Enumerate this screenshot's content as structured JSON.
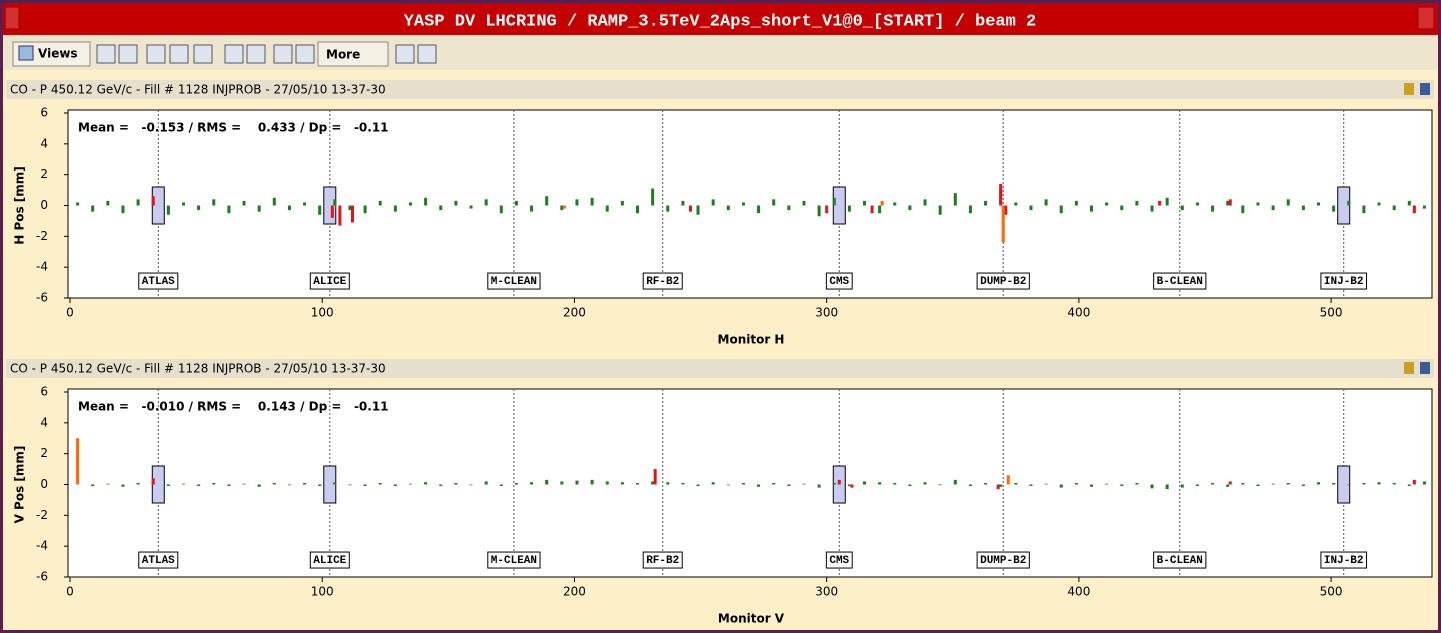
{
  "window": {
    "title": "YASP DV LHCRING / RAMP_3.5TeV_2Aps_short_V1@0_[START] / beam 2"
  },
  "toolbar": {
    "views": "Views",
    "more": "More"
  },
  "chart_data": [
    {
      "type": "bar",
      "panel_title": "CO - P 450.12 GeV/c - Fill # 1128 INJPROB - 27/05/10 13-37-30",
      "stats": "Mean =   -0.153 / RMS =    0.433 / Dp =   -0.11",
      "ylabel": "H Pos [mm]",
      "xlabel": "Monitor H",
      "xlim": [
        0,
        540
      ],
      "ylim": [
        -6,
        6
      ],
      "xticks": [
        0,
        100,
        200,
        300,
        400,
        500
      ],
      "yticks": [
        -6,
        -4,
        -2,
        0,
        2,
        4,
        6
      ],
      "markers": [
        {
          "label": "ATLAS",
          "x": 35,
          "box": true
        },
        {
          "label": "ALICE",
          "x": 103,
          "box": true
        },
        {
          "label": "M-CLEAN",
          "x": 176,
          "box": false
        },
        {
          "label": "RF-B2",
          "x": 235,
          "box": false
        },
        {
          "label": "CMS",
          "x": 305,
          "box": true
        },
        {
          "label": "DUMP-B2",
          "x": 370,
          "box": false
        },
        {
          "label": "B-CLEAN",
          "x": 440,
          "box": false
        },
        {
          "label": "INJ-B2",
          "x": 505,
          "box": true
        }
      ],
      "series": [
        {
          "color": "#1e7d1e",
          "x": [
            3,
            9,
            15,
            21,
            27,
            33,
            39,
            45,
            51,
            57,
            63,
            69,
            75,
            81,
            87,
            93,
            99,
            105,
            111,
            117,
            123,
            129,
            135,
            141,
            147,
            153,
            159,
            165,
            171,
            177,
            183,
            189,
            195,
            201,
            207,
            213,
            219,
            225,
            231,
            237,
            243,
            249,
            255,
            261,
            267,
            273,
            279,
            285,
            291,
            297,
            303,
            309,
            315,
            321,
            327,
            333,
            339,
            345,
            351,
            357,
            363,
            369,
            375,
            381,
            387,
            393,
            399,
            405,
            411,
            417,
            423,
            429,
            435,
            441,
            447,
            453,
            459,
            465,
            471,
            477,
            483,
            489,
            495,
            501,
            507,
            513,
            519,
            525,
            531,
            537
          ],
          "values": [
            0.2,
            -0.4,
            0.3,
            -0.5,
            0.4,
            0.3,
            -0.6,
            0.2,
            -0.3,
            0.4,
            -0.5,
            0.3,
            -0.4,
            0.5,
            -0.3,
            0.2,
            -0.6,
            0.4,
            -0.3,
            -0.5,
            0.3,
            -0.4,
            0.2,
            0.5,
            -0.3,
            0.3,
            -0.2,
            0.4,
            -0.5,
            0.3,
            -0.4,
            0.6,
            -0.3,
            0.4,
            0.5,
            -0.4,
            0.3,
            -0.5,
            1.1,
            -0.4,
            0.3,
            -0.6,
            0.4,
            -0.3,
            0.2,
            -0.5,
            0.4,
            -0.3,
            0.3,
            -0.7,
            0.5,
            -0.4,
            0.3,
            -0.5,
            0.2,
            -0.3,
            0.4,
            -0.6,
            0.8,
            -0.5,
            0.3,
            1.2,
            0.2,
            -0.3,
            0.4,
            -0.5,
            0.3,
            -0.4,
            0.2,
            -0.3,
            0.3,
            -0.4,
            0.5,
            -0.3,
            0.2,
            -0.4,
            0.3,
            -0.5,
            0.2,
            -0.3,
            0.4,
            -0.3,
            0.2,
            -0.4,
            0.3,
            -0.5,
            0.2,
            -0.3,
            0.3,
            -0.2
          ]
        },
        {
          "color": "#e8101a",
          "x": [
            33,
            104,
            107,
            112,
            246,
            300,
            318,
            369,
            371,
            432,
            460,
            533
          ],
          "values": [
            0.6,
            -0.8,
            -1.3,
            -1.1,
            -0.4,
            -0.5,
            -0.5,
            1.4,
            -0.6,
            0.3,
            0.4,
            -0.5
          ]
        },
        {
          "color": "#ff6a00",
          "x": [
            196,
            322,
            370
          ],
          "values": [
            -0.2,
            0.3,
            -2.4
          ]
        }
      ]
    },
    {
      "type": "bar",
      "panel_title": "CO - P 450.12 GeV/c - Fill # 1128 INJPROB - 27/05/10 13-37-30",
      "stats": "Mean =   -0.010 / RMS =    0.143 / Dp =   -0.11",
      "ylabel": "V Pos [mm]",
      "xlabel": "Monitor V",
      "xlim": [
        0,
        540
      ],
      "ylim": [
        -6,
        6
      ],
      "xticks": [
        0,
        100,
        200,
        300,
        400,
        500
      ],
      "yticks": [
        -6,
        -4,
        -2,
        0,
        2,
        4,
        6
      ],
      "markers": [
        {
          "label": "ATLAS",
          "x": 35,
          "box": true
        },
        {
          "label": "ALICE",
          "x": 103,
          "box": true
        },
        {
          "label": "M-CLEAN",
          "x": 176,
          "box": false
        },
        {
          "label": "RF-B2",
          "x": 235,
          "box": false
        },
        {
          "label": "CMS",
          "x": 305,
          "box": true
        },
        {
          "label": "DUMP-B2",
          "x": 370,
          "box": false
        },
        {
          "label": "B-CLEAN",
          "x": 440,
          "box": false
        },
        {
          "label": "INJ-B2",
          "x": 505,
          "box": true
        }
      ],
      "series": [
        {
          "color": "#1e7d1e",
          "x": [
            3,
            9,
            15,
            21,
            27,
            33,
            39,
            45,
            51,
            57,
            63,
            69,
            75,
            81,
            87,
            93,
            99,
            105,
            111,
            117,
            123,
            129,
            135,
            141,
            147,
            153,
            159,
            165,
            171,
            177,
            183,
            189,
            195,
            201,
            207,
            213,
            219,
            225,
            231,
            237,
            243,
            249,
            255,
            261,
            267,
            273,
            279,
            285,
            291,
            297,
            303,
            309,
            315,
            321,
            327,
            333,
            339,
            345,
            351,
            357,
            363,
            369,
            375,
            381,
            387,
            393,
            399,
            405,
            411,
            417,
            423,
            429,
            435,
            441,
            447,
            453,
            459,
            465,
            471,
            477,
            483,
            489,
            495,
            501,
            507,
            513,
            519,
            525,
            531,
            537
          ],
          "values": [
            0.1,
            -0.1,
            0.05,
            -0.15,
            0.1,
            0.15,
            -0.1,
            0.05,
            -0.1,
            0.1,
            -0.1,
            0.05,
            -0.15,
            0.1,
            -0.05,
            0.1,
            -0.1,
            0.15,
            -0.05,
            -0.1,
            0.1,
            -0.1,
            0.05,
            0.15,
            -0.1,
            0.1,
            -0.05,
            0.2,
            -0.1,
            0.1,
            0.15,
            0.3,
            0.2,
            0.25,
            0.3,
            0.2,
            0.15,
            0.1,
            0.2,
            0.15,
            0.1,
            -0.1,
            0.15,
            -0.05,
            0.1,
            -0.15,
            0.1,
            -0.1,
            0.05,
            -0.2,
            0.1,
            -0.1,
            0.2,
            0.15,
            0.1,
            -0.1,
            0.15,
            -0.05,
            0.3,
            -0.1,
            0.1,
            -0.15,
            0.1,
            -0.1,
            0.05,
            -0.2,
            0.1,
            -0.15,
            0.05,
            -0.1,
            0.1,
            -0.25,
            -0.3,
            -0.2,
            -0.1,
            0.1,
            -0.15,
            0.1,
            -0.1,
            0.05,
            0.1,
            -0.1,
            0.15,
            0.1,
            -0.05,
            0.1,
            0.15,
            0.1,
            -0.1,
            0.2
          ]
        },
        {
          "color": "#e8101a",
          "x": [
            33,
            232,
            305,
            310,
            368,
            460,
            533
          ],
          "values": [
            0.4,
            1.0,
            0.3,
            -0.2,
            -0.3,
            0.2,
            0.3
          ]
        },
        {
          "color": "#ff6a00",
          "x": [
            3,
            372
          ],
          "values": [
            3.0,
            0.6
          ]
        }
      ]
    }
  ]
}
